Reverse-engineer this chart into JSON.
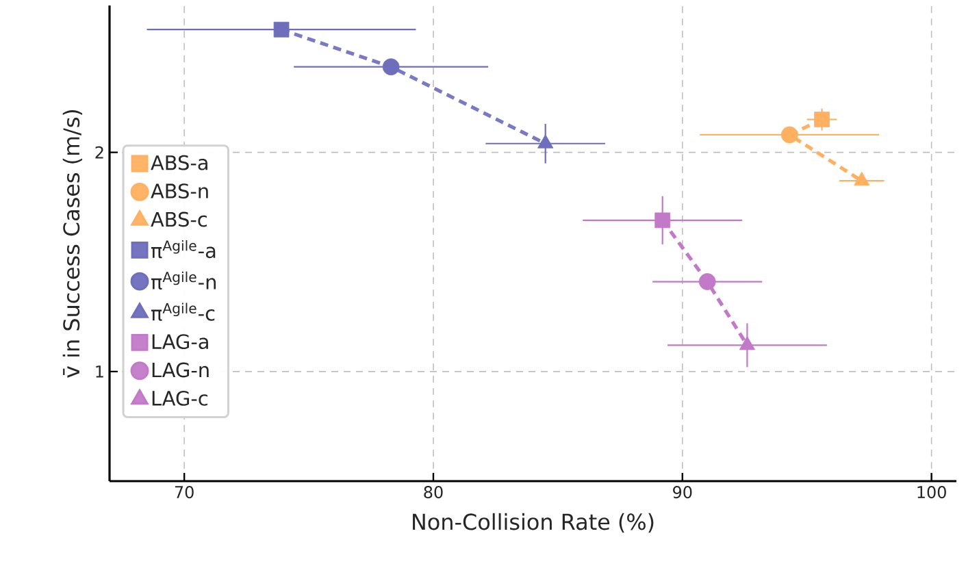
{
  "chart_data": {
    "type": "scatter",
    "xlabel": "Non-Collision Rate (%)",
    "ylabel": "v̄ in Success Cases (m/s)",
    "xlim": [
      67,
      101
    ],
    "ylim": [
      0.5,
      2.67
    ],
    "xticks": [
      70,
      80,
      90,
      100
    ],
    "yticks": [
      1,
      2
    ],
    "grid": true,
    "legend": "left",
    "series": [
      {
        "name": "ABS-a",
        "color": "#ffb060",
        "marker": "square",
        "x": [
          95.6
        ],
        "values": [
          2.15
        ],
        "xerrors": [
          0.6
        ],
        "errors": [
          0.05
        ]
      },
      {
        "name": "ABS-n",
        "color": "#ffb060",
        "marker": "circle",
        "x": [
          94.3
        ],
        "values": [
          2.08
        ],
        "xerrors": [
          3.6
        ],
        "errors": [
          null
        ]
      },
      {
        "name": "ABS-c",
        "color": "#ffb060",
        "marker": "triangle",
        "x": [
          97.2
        ],
        "values": [
          1.87
        ],
        "xerrors": [
          0.9
        ],
        "errors": [
          null
        ]
      },
      {
        "name": "π$^{Agile}$-a",
        "color": "#6e6ebc",
        "marker": "square",
        "x": [
          73.9
        ],
        "values": [
          2.56
        ],
        "xerrors": [
          5.4
        ],
        "errors": [
          null
        ]
      },
      {
        "name": "π$^{Agile}$-n",
        "color": "#6e6ebc",
        "marker": "circle",
        "x": [
          78.3
        ],
        "values": [
          2.39
        ],
        "xerrors": [
          3.9
        ],
        "errors": [
          null
        ]
      },
      {
        "name": "π$^{Agile}$-c",
        "color": "#6e6ebc",
        "marker": "triangle",
        "x": [
          84.5
        ],
        "values": [
          2.04
        ],
        "xerrors": [
          2.4
        ],
        "errors": [
          0.09
        ]
      },
      {
        "name": "LAG-a",
        "color": "#c27ac8",
        "marker": "square",
        "x": [
          89.2
        ],
        "values": [
          1.69
        ],
        "xerrors": [
          3.2
        ],
        "errors": [
          0.11
        ]
      },
      {
        "name": "LAG-n",
        "color": "#c27ac8",
        "marker": "circle",
        "x": [
          91.0
        ],
        "values": [
          1.41
        ],
        "xerrors": [
          2.2
        ],
        "errors": [
          null
        ]
      },
      {
        "name": "LAG-c",
        "color": "#c27ac8",
        "marker": "triangle",
        "x": [
          92.6
        ],
        "values": [
          1.12
        ],
        "xerrors": [
          3.2
        ],
        "errors": [
          0.1
        ]
      },
      {
        "color": "#ffb060",
        "type": "line",
        "line_style": "dashed",
        "marker": "none",
        "x": [
          95.6,
          94.3,
          97.2
        ],
        "values": [
          2.15,
          2.08,
          1.87
        ]
      },
      {
        "color": "#7a7ac4",
        "type": "line",
        "line_style": "dashed",
        "marker": "none",
        "x": [
          73.9,
          78.3,
          84.5
        ],
        "values": [
          2.56,
          2.39,
          2.04
        ]
      },
      {
        "color": "#c27ac8",
        "type": "line",
        "line_style": "dashed",
        "marker": "none",
        "x": [
          89.2,
          91.0,
          92.6
        ],
        "values": [
          1.69,
          1.41,
          1.12
        ]
      }
    ]
  }
}
